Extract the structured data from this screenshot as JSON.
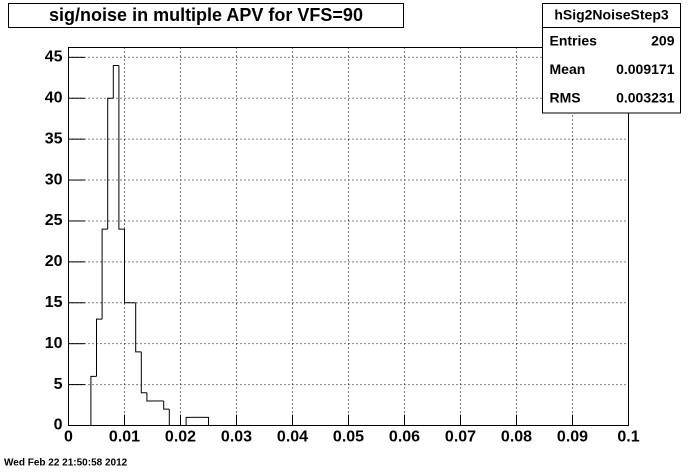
{
  "chart_data": {
    "type": "histogram",
    "title": "sig/noise in multiple APV for VFS=90",
    "bins": [
      0.004,
      0.005,
      0.006,
      0.007,
      0.008,
      0.009,
      0.01,
      0.011,
      0.012,
      0.013,
      0.014,
      0.015,
      0.016,
      0.017,
      0.018,
      0.019,
      0.02,
      0.021,
      0.022,
      0.023,
      0.024,
      0.025
    ],
    "values": [
      6,
      13,
      24,
      40,
      44,
      24,
      15,
      15,
      9,
      4,
      3,
      3,
      3,
      2,
      0,
      0,
      0,
      1,
      1,
      1,
      1
    ],
    "color": "#000000",
    "xlim": [
      0,
      0.1
    ],
    "xticks": [
      0,
      0.01,
      0.02,
      0.03,
      0.04,
      0.05,
      0.06,
      0.07,
      0.08,
      0.09,
      0.1
    ],
    "ylim": [
      0,
      46.2
    ],
    "yticks": [
      0,
      5,
      10,
      15,
      20,
      25,
      30,
      35,
      40,
      45
    ],
    "grid": true,
    "stats": {
      "name": "hSig2NoiseStep3",
      "entries": [
        {
          "label": "Entries",
          "value": 209
        },
        {
          "label": "Mean",
          "value": 0.009171
        },
        {
          "label": "RMS",
          "value": 0.003231
        }
      ]
    },
    "footer": "Wed Feb 22 21:50:58 2012"
  }
}
